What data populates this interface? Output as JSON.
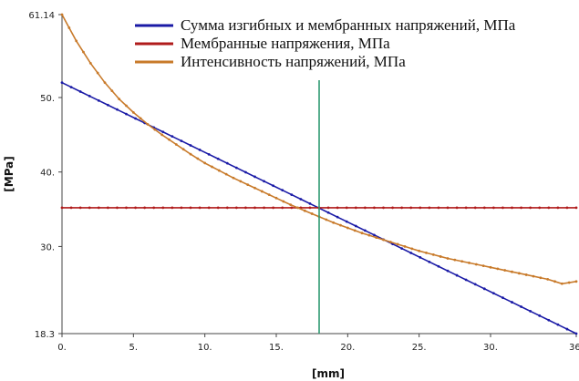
{
  "chart_data": {
    "type": "line",
    "xlabel": "[mm]",
    "ylabel": "[MPa]",
    "xlim": [
      0,
      36
    ],
    "ylim": [
      18.3,
      61.14
    ],
    "x_ticks": [
      "0.",
      "5.",
      "10.",
      "15.",
      "20.",
      "25.",
      "30.",
      "36."
    ],
    "x_tick_values": [
      0,
      5,
      10,
      15,
      20,
      25,
      30,
      36
    ],
    "y_ticks": [
      "18.3",
      "30.",
      "40.",
      "50.",
      "61.14"
    ],
    "y_tick_values": [
      18.3,
      30,
      40,
      50,
      61.14
    ],
    "grid": false,
    "legend_position": "top-right",
    "cursor_x": 18,
    "series": [
      {
        "name": "Сумма изгибных и мембранных напряжений, МПа",
        "color": "#1a1aa6",
        "x": [
          0,
          36
        ],
        "y": [
          52.0,
          18.3
        ]
      },
      {
        "name": "Мембранные напряжения, МПа",
        "color": "#b01c1c",
        "x": [
          0,
          36
        ],
        "y": [
          35.2,
          35.2
        ]
      },
      {
        "name": "Интенсивность напряжений, МПа",
        "color": "#c87a2a",
        "x": [
          0,
          1,
          2,
          3,
          4,
          5,
          6,
          7,
          8,
          9,
          10,
          11,
          12,
          13,
          14,
          15,
          16,
          17,
          18,
          19,
          20,
          21,
          22,
          23,
          24,
          25,
          26,
          27,
          28,
          29,
          30,
          31,
          32,
          33,
          34,
          35,
          36
        ],
        "y": [
          61.14,
          57.6,
          54.6,
          52.0,
          49.8,
          48.0,
          46.4,
          45.0,
          43.7,
          42.4,
          41.2,
          40.2,
          39.2,
          38.3,
          37.4,
          36.5,
          35.6,
          34.8,
          34.0,
          33.2,
          32.5,
          31.8,
          31.2,
          30.6,
          30.0,
          29.4,
          28.9,
          28.4,
          28.0,
          27.6,
          27.2,
          26.8,
          26.4,
          26.0,
          25.6,
          25.0,
          25.3
        ]
      }
    ]
  },
  "colors": {
    "cursor": "#2e9a72",
    "axis": "#444444"
  }
}
